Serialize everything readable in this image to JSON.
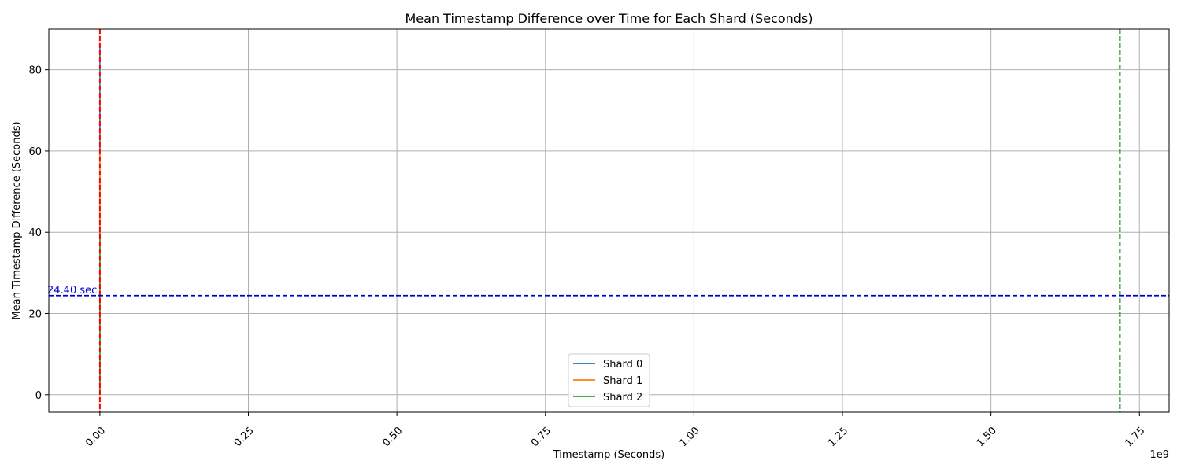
{
  "chart_data": {
    "type": "line",
    "title": "Mean Timestamp Difference over Time for Each Shard (Seconds)",
    "xlabel": "Timestamp (Seconds)",
    "ylabel": "Mean Timestamp Difference (Seconds)",
    "x_scale_label": "1e9",
    "xlim": [
      -0.086,
      1.8
    ],
    "ylim": [
      -4.3,
      90
    ],
    "x_ticks": [
      0.0,
      0.25,
      0.5,
      0.75,
      1.0,
      1.25,
      1.5,
      1.75
    ],
    "x_tick_labels": [
      "0.00",
      "0.25",
      "0.50",
      "0.75",
      "1.00",
      "1.25",
      "1.50",
      "1.75"
    ],
    "y_ticks": [
      0,
      20,
      40,
      60,
      80
    ],
    "y_tick_labels": [
      "0",
      "20",
      "40",
      "60",
      "80"
    ],
    "grid": true,
    "legend_position": "lower center",
    "series": [
      {
        "name": "Shard 0",
        "color": "#1f77b4",
        "x": [
          0.0,
          0.0
        ],
        "y": [
          0,
          86
        ]
      },
      {
        "name": "Shard 1",
        "color": "#ff7f0e",
        "x": [
          0.0,
          0.0
        ],
        "y": [
          0,
          60
        ]
      },
      {
        "name": "Shard 2",
        "color": "#2ca02c",
        "x": [
          0.0,
          0.0
        ],
        "y": [
          0,
          40
        ]
      }
    ],
    "reference_lines": [
      {
        "orientation": "vertical",
        "x": 0.0,
        "color": "#ff0000",
        "style": "dashed"
      },
      {
        "orientation": "vertical",
        "x": 1.717,
        "color": "#008000",
        "style": "dashed"
      },
      {
        "orientation": "horizontal",
        "y": 24.4,
        "color": "#0000cd",
        "style": "dashed"
      }
    ],
    "annotations": [
      {
        "text": "24.40 sec",
        "x": -0.086,
        "y": 24.4,
        "color": "#0000cd"
      }
    ]
  }
}
